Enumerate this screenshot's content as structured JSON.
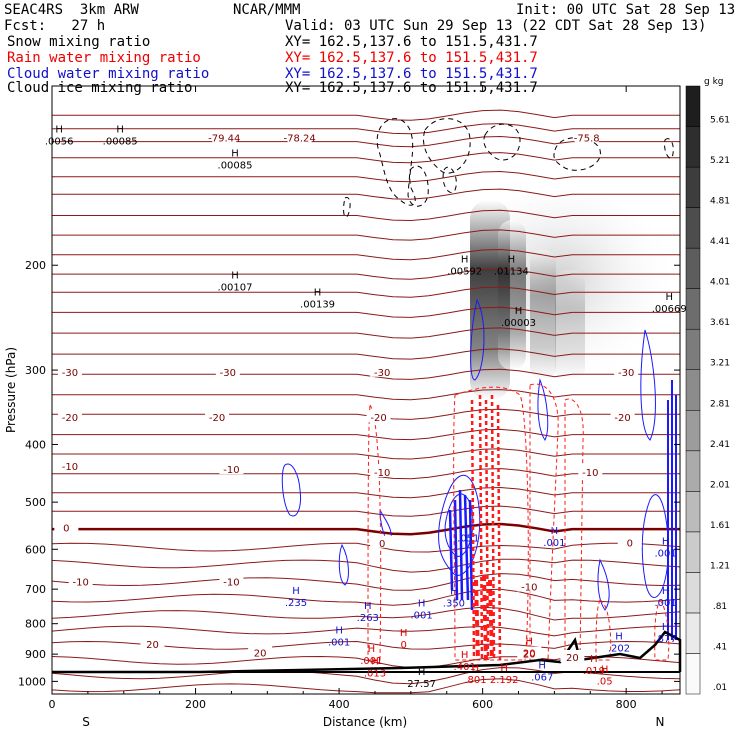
{
  "header": {
    "left1": "SEAC4RS  3km ARW",
    "left2": "Fcst:   27 h",
    "center1": "NCAR/MMM",
    "init": "Init: 00 UTC Sat 28 Sep 13",
    "valid": "Valid: 03 UTC Sun 29 Sep 13 (22 CDT Sat 28 Sep 13)"
  },
  "legend": [
    {
      "label": "Snow mixing ratio",
      "xy": "XY= 162.5,137.6 to 151.5,431.7",
      "color": "#000000"
    },
    {
      "label": "Rain water mixing ratio",
      "xy": "XY= 162.5,137.6 to 151.5,431.7",
      "color": "#ff0000"
    },
    {
      "label": "Cloud water mixing ratio",
      "xy": "XY= 162.5,137.6 to 151.5,431.7",
      "color": "#0000cc"
    },
    {
      "label": "Cloud ice mixing ratio",
      "xy": "XY= 162.5,137.6 to 151.5,431.7",
      "color": "#000000"
    }
  ],
  "chart_data": {
    "type": "cross-section",
    "xlabel": "Distance (km)",
    "ylabel": "Pressure (hPa)",
    "xlim": [
      0,
      875
    ],
    "ylim": [
      1050,
      100
    ],
    "y_log": true,
    "x_ticks": [
      0,
      200,
      400,
      600,
      800
    ],
    "y_ticks": [
      200,
      300,
      400,
      500,
      600,
      700,
      800,
      900,
      1000
    ],
    "x_end_labels": [
      "S",
      "N"
    ],
    "colorbar": {
      "unit": "g kg",
      "unit_exp": "-1",
      "levels": [
        ".01",
        ".41",
        ".81",
        "1.21",
        "1.61",
        "2.01",
        "2.41",
        "2.81",
        "3.21",
        "3.61",
        "4.01",
        "4.41",
        "4.81",
        "5.21",
        "5.61"
      ]
    },
    "temperature_labels": [
      {
        "value": "-79.44",
        "x": 240,
        "p": 122
      },
      {
        "value": "-78.24",
        "x": 345,
        "p": 122
      },
      {
        "value": "-75.8",
        "x": 745,
        "p": 122
      },
      {
        "value": "-30",
        "x": 25,
        "p": 302
      },
      {
        "value": "-30",
        "x": 245,
        "p": 302
      },
      {
        "value": "-30",
        "x": 460,
        "p": 302
      },
      {
        "value": "-30",
        "x": 800,
        "p": 302
      },
      {
        "value": "-20",
        "x": 25,
        "p": 360
      },
      {
        "value": "-20",
        "x": 230,
        "p": 360
      },
      {
        "value": "-20",
        "x": 455,
        "p": 360
      },
      {
        "value": "-20",
        "x": 795,
        "p": 360
      },
      {
        "value": "-10",
        "x": 25,
        "p": 435
      },
      {
        "value": "-10",
        "x": 250,
        "p": 440
      },
      {
        "value": "-10",
        "x": 460,
        "p": 445
      },
      {
        "value": "-10",
        "x": 750,
        "p": 445
      },
      {
        "value": "0",
        "x": 20,
        "p": 552
      },
      {
        "value": "0",
        "x": 460,
        "p": 585
      },
      {
        "value": "0",
        "x": 805,
        "p": 584
      },
      {
        "value": "-10",
        "x": 40,
        "p": 680
      },
      {
        "value": "-10",
        "x": 250,
        "p": 680
      },
      {
        "value": "-10",
        "x": 665,
        "p": 693
      },
      {
        "value": "20",
        "x": 140,
        "p": 865
      },
      {
        "value": "20",
        "x": 290,
        "p": 895
      },
      {
        "value": "20",
        "x": 665,
        "p": 898
      },
      {
        "value": "20",
        "x": 725,
        "p": 910
      }
    ],
    "snow_labels": [
      {
        "text": ".0056",
        "x": 10,
        "p": 124
      },
      {
        "text": ".00085",
        "x": 95,
        "p": 124
      },
      {
        "text": ".00085",
        "x": 255,
        "p": 136
      },
      {
        "text": ".00107",
        "x": 255,
        "p": 218
      },
      {
        "text": ".00139",
        "x": 370,
        "p": 233
      },
      {
        "text": ".00592",
        "x": 575,
        "p": 205
      },
      {
        "text": ".01134",
        "x": 640,
        "p": 205
      },
      {
        "text": ".00003",
        "x": 650,
        "p": 250
      },
      {
        "text": ".00669",
        "x": 860,
        "p": 237
      }
    ],
    "cloud_water_labels": [
      {
        "text": ".235",
        "x": 340,
        "p": 738
      },
      {
        "text": ".263",
        "x": 440,
        "p": 782
      },
      {
        "text": ".001",
        "x": 515,
        "p": 775
      },
      {
        "text": ".001",
        "x": 400,
        "p": 860
      },
      {
        "text": ".350",
        "x": 560,
        "p": 740
      },
      {
        "text": ".001",
        "x": 855,
        "p": 610
      },
      {
        "text": ".001",
        "x": 855,
        "p": 738
      },
      {
        "text": ".877",
        "x": 855,
        "p": 848
      },
      {
        "text": ".202",
        "x": 790,
        "p": 880
      },
      {
        "text": ".051",
        "x": 580,
        "p": 575
      },
      {
        "text": ".001",
        "x": 700,
        "p": 585
      },
      {
        "text": ".067",
        "x": 683,
        "p": 985
      }
    ],
    "rain_labels": [
      {
        "text": "0",
        "x": 490,
        "p": 868
      },
      {
        "text": ".001",
        "x": 445,
        "p": 925
      },
      {
        "text": ".013",
        "x": 450,
        "p": 970
      },
      {
        "text": ".401",
        "x": 575,
        "p": 945
      },
      {
        "text": ".801",
        "x": 590,
        "p": 995
      },
      {
        "text": "2.192",
        "x": 630,
        "p": 995
      },
      {
        "text": ".019",
        "x": 755,
        "p": 960
      },
      {
        "text": ".05",
        "x": 770,
        "p": 1000
      },
      {
        "text": "20",
        "x": 665,
        "p": 898
      }
    ],
    "max_labels": [
      {
        "text": "27.57",
        "x": 515,
        "p": 1010
      }
    ]
  }
}
